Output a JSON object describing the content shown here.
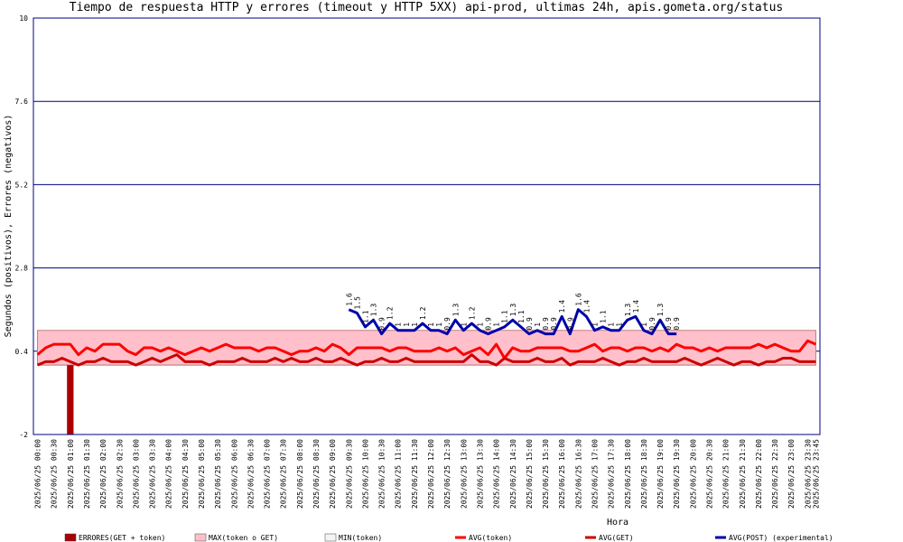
{
  "chart_data": {
    "type": "line",
    "title": "Tiempo de respuesta HTTP y errores (timeout y HTTP 5XX) api-prod, ultimas 24h, apis.gometa.org/status",
    "ylabel": "Segundos (positivos), Errores (negativos)",
    "xlabel": "Hora",
    "ylim": [
      -2,
      10
    ],
    "yticks": [
      -2,
      0.4,
      2.8,
      5.2,
      7.6,
      10
    ],
    "grid": true,
    "legend": "bottom",
    "categories": [
      "2025/06/25 00:00",
      null,
      "2025/06/25 00:30",
      null,
      "2025/06/25 01:00",
      null,
      "2025/06/25 01:30",
      null,
      "2025/06/25 02:00",
      null,
      "2025/06/25 02:30",
      null,
      "2025/06/25 03:00",
      null,
      "2025/06/25 03:30",
      null,
      "2025/06/25 04:00",
      null,
      "2025/06/25 04:30",
      null,
      "2025/06/25 05:00",
      null,
      "2025/06/25 05:30",
      null,
      "2025/06/25 06:00",
      null,
      "2025/06/25 06:30",
      null,
      "2025/06/25 07:00",
      null,
      "2025/06/25 07:30",
      null,
      "2025/06/25 08:00",
      null,
      "2025/06/25 08:30",
      null,
      "2025/06/25 09:00",
      null,
      "2025/06/25 09:30",
      null,
      "2025/06/25 10:00",
      null,
      "2025/06/25 10:30",
      null,
      "2025/06/25 11:00",
      null,
      "2025/06/25 11:30",
      null,
      "2025/06/25 12:00",
      null,
      "2025/06/25 12:30",
      null,
      "2025/06/25 13:00",
      null,
      "2025/06/25 13:30",
      null,
      "2025/06/25 14:00",
      null,
      "2025/06/25 14:30",
      null,
      "2025/06/25 15:00",
      null,
      "2025/06/25 15:30",
      null,
      "2025/06/25 16:00",
      null,
      "2025/06/25 16:30",
      null,
      "2025/06/25 17:00",
      null,
      "2025/06/25 17:30",
      null,
      "2025/06/25 18:00",
      null,
      "2025/06/25 18:30",
      null,
      "2025/06/25 19:00",
      null,
      "2025/06/25 19:30",
      null,
      "2025/06/25 20:00",
      null,
      "2025/06/25 20:30",
      null,
      "2025/06/25 21:00",
      null,
      "2025/06/25 21:30",
      null,
      "2025/06/25 22:00",
      null,
      "2025/06/25 22:30",
      null,
      "2025/06/25 23:00",
      null,
      "2025/06/25 23:30",
      "2025/06/25 23:45"
    ],
    "series": [
      {
        "name": "ERRORES(GET + token)",
        "kind": "bar",
        "color": "#aa0000",
        "values": [
          0,
          0,
          0,
          0,
          -2,
          0,
          0,
          0,
          0,
          0,
          0,
          0,
          0,
          0,
          0,
          0,
          0,
          0,
          0,
          0,
          0,
          0,
          0,
          0,
          0,
          0,
          0,
          0,
          0,
          0,
          0,
          0,
          0,
          0,
          0,
          0,
          0,
          0,
          0,
          0,
          0,
          0,
          0,
          0,
          0,
          0,
          0,
          0,
          0,
          0,
          0,
          0,
          0,
          0,
          0,
          0,
          0,
          0,
          0,
          0,
          0,
          0,
          0,
          0,
          0,
          0,
          0,
          0,
          0,
          0,
          0,
          0,
          0,
          0,
          0,
          0,
          0,
          0,
          0,
          0,
          0,
          0,
          0,
          0,
          0,
          0,
          0,
          0,
          0,
          0,
          0,
          0,
          0,
          0,
          0,
          0
        ]
      },
      {
        "name": "MAX(token o GET)",
        "kind": "area",
        "color": "#ffc0cb",
        "values": [
          1,
          1,
          1,
          1,
          1,
          1,
          1,
          1,
          1,
          1,
          1,
          1,
          1,
          1,
          1,
          1,
          1,
          1,
          1,
          1,
          1,
          1,
          1,
          1,
          1,
          1,
          1,
          1,
          1,
          1,
          1,
          1,
          1,
          1,
          1,
          1,
          1,
          1,
          1,
          1,
          1,
          1,
          1,
          1,
          1,
          1,
          1,
          1,
          1,
          1,
          1,
          1,
          1,
          1,
          1,
          1,
          1,
          1,
          1,
          1,
          1,
          1,
          1,
          1,
          1,
          1,
          1,
          1,
          1,
          1,
          1,
          1,
          1,
          1,
          1,
          1,
          1,
          1,
          1,
          1,
          1,
          1,
          1,
          1,
          1,
          1,
          1,
          1,
          1,
          1,
          1,
          1,
          1,
          1,
          1,
          1
        ]
      },
      {
        "name": "MIN(token)",
        "kind": "area",
        "color": "#f4f4f4",
        "values": [
          0,
          0,
          0,
          0,
          0,
          0,
          0,
          0,
          0,
          0,
          0,
          0,
          0,
          0,
          0,
          0,
          0,
          0,
          0,
          0,
          0,
          0,
          0,
          0,
          0,
          0,
          0,
          0,
          0,
          0,
          0,
          0,
          0,
          0,
          0,
          0,
          0,
          0,
          0,
          0,
          0,
          0,
          0,
          0,
          0,
          0,
          0,
          0,
          0,
          0,
          0,
          0,
          0,
          0,
          0,
          0,
          0,
          0,
          0,
          0,
          0,
          0,
          0,
          0,
          0,
          0,
          0,
          0,
          0,
          0,
          0,
          0,
          0,
          0,
          0,
          0,
          0,
          0,
          0,
          0,
          0,
          0,
          0,
          0,
          0,
          0,
          0,
          0,
          0,
          0,
          0,
          0,
          0,
          0,
          0,
          0
        ]
      },
      {
        "name": "AVG(token)",
        "kind": "line",
        "color": "#ff0000",
        "values": [
          0.3,
          0.5,
          0.6,
          0.6,
          0.6,
          0.3,
          0.5,
          0.4,
          0.6,
          0.6,
          0.6,
          0.4,
          0.3,
          0.5,
          0.5,
          0.4,
          0.5,
          0.4,
          0.3,
          0.4,
          0.5,
          0.4,
          0.5,
          0.6,
          0.5,
          0.5,
          0.5,
          0.4,
          0.5,
          0.5,
          0.4,
          0.3,
          0.4,
          0.4,
          0.5,
          0.4,
          0.6,
          0.5,
          0.3,
          0.5,
          0.5,
          0.5,
          0.5,
          0.4,
          0.5,
          0.5,
          0.4,
          0.4,
          0.4,
          0.5,
          0.4,
          0.5,
          0.3,
          0.4,
          0.5,
          0.3,
          0.6,
          0.2,
          0.5,
          0.4,
          0.4,
          0.5,
          0.5,
          0.5,
          0.5,
          0.4,
          0.4,
          0.5,
          0.6,
          0.4,
          0.5,
          0.5,
          0.4,
          0.5,
          0.5,
          0.4,
          0.5,
          0.4,
          0.6,
          0.5,
          0.5,
          0.4,
          0.5,
          0.4,
          0.5,
          0.5,
          0.5,
          0.5,
          0.6,
          0.5,
          0.6,
          0.5,
          0.4,
          0.4,
          0.7,
          0.6
        ]
      },
      {
        "name": "AVG(GET)",
        "kind": "line",
        "color": "#cc0000",
        "values": [
          0,
          0.1,
          0.1,
          0.2,
          0.1,
          0,
          0.1,
          0.1,
          0.2,
          0.1,
          0.1,
          0.1,
          0,
          0.1,
          0.2,
          0.1,
          0.2,
          0.3,
          0.1,
          0.1,
          0.1,
          0,
          0.1,
          0.1,
          0.1,
          0.2,
          0.1,
          0.1,
          0.1,
          0.2,
          0.1,
          0.2,
          0.1,
          0.1,
          0.2,
          0.1,
          0.1,
          0.2,
          0.1,
          0,
          0.1,
          0.1,
          0.2,
          0.1,
          0.1,
          0.2,
          0.1,
          0.1,
          0.1,
          0.1,
          0.1,
          0.1,
          0.1,
          0.3,
          0.1,
          0.1,
          0,
          0.2,
          0.1,
          0.1,
          0.1,
          0.2,
          0.1,
          0.1,
          0.2,
          0,
          0.1,
          0.1,
          0.1,
          0.2,
          0.1,
          0,
          0.1,
          0.1,
          0.2,
          0.1,
          0.1,
          0.1,
          0.1,
          0.2,
          0.1,
          0,
          0.1,
          0.2,
          0.1,
          0,
          0.1,
          0.1,
          0,
          0.1,
          0.1,
          0.2,
          0.2,
          0.1,
          0.1,
          0.1
        ]
      },
      {
        "name": "AVG(POST) (experimental)",
        "kind": "line",
        "labels": true,
        "color": "#0000aa",
        "values": [
          null,
          null,
          null,
          null,
          null,
          null,
          null,
          null,
          null,
          null,
          null,
          null,
          null,
          null,
          null,
          null,
          null,
          null,
          null,
          null,
          null,
          null,
          null,
          null,
          null,
          null,
          null,
          null,
          null,
          null,
          null,
          null,
          null,
          null,
          null,
          null,
          null,
          null,
          1.6,
          1.5,
          1.1,
          1.3,
          0.9,
          1.2,
          1,
          1,
          1,
          1.2,
          1,
          1,
          0.9,
          1.3,
          1,
          1.2,
          1,
          0.9,
          1,
          1.1,
          1.3,
          1.1,
          0.9,
          1,
          0.9,
          0.9,
          1.4,
          0.9,
          1.6,
          1.4,
          1,
          1.1,
          1,
          1,
          1.3,
          1.4,
          1,
          0.9,
          1.3,
          0.9,
          0.9,
          null,
          null,
          null,
          null,
          null,
          null,
          null,
          null,
          null,
          null,
          null,
          null,
          null,
          null,
          null,
          null,
          null
        ]
      }
    ]
  }
}
